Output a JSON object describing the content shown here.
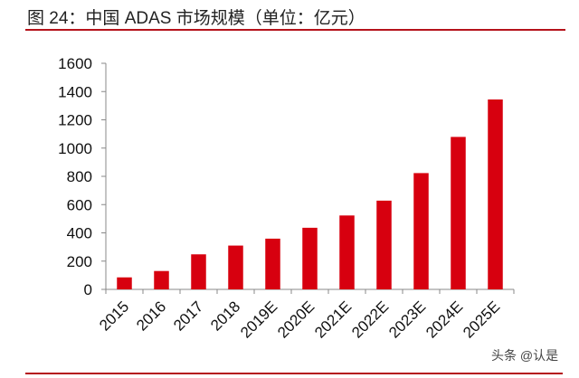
{
  "chart_data": {
    "type": "bar",
    "title": "图 24：中国 ADAS 市场规模（单位：亿元）",
    "xlabel": "",
    "ylabel": "",
    "categories": [
      "2015",
      "2016",
      "2017",
      "2018",
      "2019E",
      "2020E",
      "2021E",
      "2022E",
      "2023E",
      "2024E",
      "2025E"
    ],
    "values": [
      85,
      130,
      248,
      310,
      359,
      436,
      523,
      628,
      823,
      1079,
      1344
    ],
    "ylim": [
      0,
      1600
    ],
    "yticks": [
      "0",
      "200",
      "400",
      "600",
      "800",
      "1000",
      "1200",
      "1400",
      "1600"
    ],
    "grid": false,
    "bar_color": "#d7000f"
  },
  "watermark": "头条 @认是"
}
